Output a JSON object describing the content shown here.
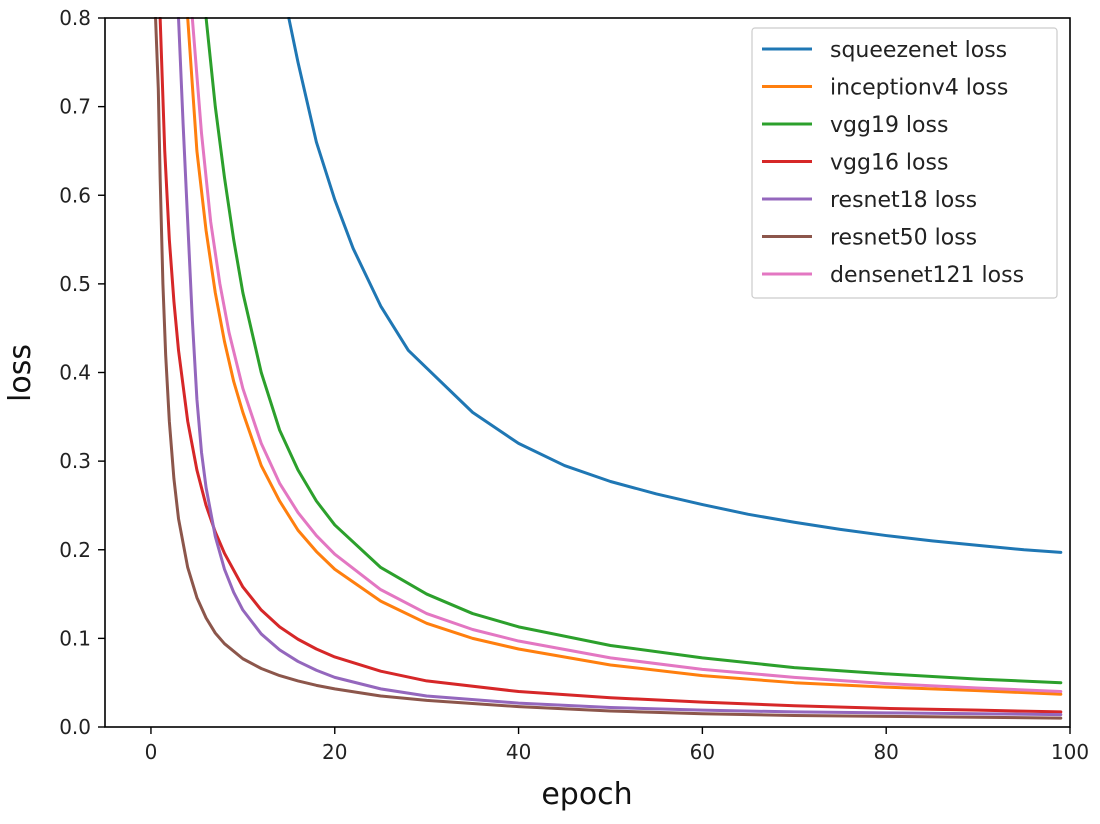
{
  "chart_data": {
    "type": "line",
    "title": "",
    "xlabel": "epoch",
    "ylabel": "loss",
    "xlim": [
      -5,
      100
    ],
    "ylim": [
      0.0,
      0.8
    ],
    "xticks": [
      0,
      20,
      40,
      60,
      80,
      100
    ],
    "xtick_labels": [
      "0",
      "20",
      "40",
      "60",
      "80",
      "100"
    ],
    "yticks": [
      0.0,
      0.1,
      0.2,
      0.3,
      0.4,
      0.5,
      0.6,
      0.7,
      0.8
    ],
    "ytick_labels": [
      "0.0",
      "0.1",
      "0.2",
      "0.3",
      "0.4",
      "0.5",
      "0.6",
      "0.7",
      "0.8"
    ],
    "grid": false,
    "legend_position": "top-right",
    "series": [
      {
        "name": "squeezenet loss",
        "color": "#1f77b4",
        "x": [
          15,
          16,
          18,
          20,
          22,
          25,
          28,
          30,
          35,
          40,
          45,
          50,
          55,
          60,
          65,
          70,
          75,
          80,
          85,
          90,
          95,
          99
        ],
        "y": [
          0.8,
          0.75,
          0.66,
          0.595,
          0.54,
          0.475,
          0.425,
          0.405,
          0.355,
          0.32,
          0.295,
          0.277,
          0.263,
          0.251,
          0.24,
          0.231,
          0.223,
          0.216,
          0.21,
          0.205,
          0.2,
          0.197
        ]
      },
      {
        "name": "inceptionv4 loss",
        "color": "#ff7f0e",
        "x": [
          4,
          5,
          6,
          7,
          8,
          9,
          10,
          12,
          14,
          16,
          18,
          20,
          25,
          30,
          35,
          40,
          50,
          60,
          70,
          80,
          90,
          99
        ],
        "y": [
          0.8,
          0.65,
          0.56,
          0.49,
          0.435,
          0.39,
          0.355,
          0.295,
          0.255,
          0.222,
          0.198,
          0.178,
          0.142,
          0.117,
          0.1,
          0.088,
          0.07,
          0.058,
          0.05,
          0.045,
          0.041,
          0.037
        ]
      },
      {
        "name": "vgg19 loss",
        "color": "#2ca02c",
        "x": [
          6,
          7,
          8,
          9,
          10,
          12,
          14,
          16,
          18,
          20,
          25,
          30,
          35,
          40,
          50,
          60,
          70,
          80,
          90,
          99
        ],
        "y": [
          0.8,
          0.7,
          0.62,
          0.55,
          0.49,
          0.4,
          0.335,
          0.29,
          0.255,
          0.228,
          0.18,
          0.15,
          0.128,
          0.113,
          0.092,
          0.078,
          0.067,
          0.06,
          0.054,
          0.05
        ]
      },
      {
        "name": "vgg16 loss",
        "color": "#d62728",
        "x": [
          1,
          1.5,
          2,
          2.5,
          3,
          4,
          5,
          6,
          7,
          8,
          10,
          12,
          14,
          16,
          18,
          20,
          25,
          30,
          40,
          50,
          60,
          70,
          80,
          90,
          99
        ],
        "y": [
          0.8,
          0.65,
          0.55,
          0.48,
          0.425,
          0.345,
          0.29,
          0.25,
          0.22,
          0.196,
          0.158,
          0.132,
          0.113,
          0.099,
          0.088,
          0.079,
          0.063,
          0.052,
          0.04,
          0.033,
          0.028,
          0.024,
          0.021,
          0.019,
          0.017
        ]
      },
      {
        "name": "resnet18 loss",
        "color": "#9467bd",
        "x": [
          3,
          3.5,
          4,
          4.5,
          5,
          5.5,
          6,
          7,
          8,
          9,
          10,
          12,
          14,
          16,
          18,
          20,
          25,
          30,
          40,
          50,
          60,
          70,
          80,
          90,
          99
        ],
        "y": [
          0.8,
          0.68,
          0.57,
          0.46,
          0.37,
          0.31,
          0.27,
          0.215,
          0.178,
          0.152,
          0.132,
          0.105,
          0.087,
          0.074,
          0.064,
          0.056,
          0.043,
          0.035,
          0.027,
          0.022,
          0.019,
          0.017,
          0.016,
          0.015,
          0.014
        ]
      },
      {
        "name": "resnet50 loss",
        "color": "#8c564b",
        "x": [
          0.5,
          0.8,
          1,
          1.3,
          1.6,
          2,
          2.5,
          3,
          4,
          5,
          6,
          7,
          8,
          10,
          12,
          14,
          16,
          18,
          20,
          25,
          30,
          40,
          50,
          60,
          70,
          80,
          90,
          99
        ],
        "y": [
          0.8,
          0.72,
          0.62,
          0.5,
          0.42,
          0.345,
          0.28,
          0.235,
          0.18,
          0.146,
          0.123,
          0.106,
          0.094,
          0.077,
          0.066,
          0.058,
          0.052,
          0.047,
          0.043,
          0.035,
          0.03,
          0.023,
          0.018,
          0.015,
          0.013,
          0.012,
          0.011,
          0.01
        ]
      },
      {
        "name": "densenet121 loss",
        "color": "#e377c2",
        "x": [
          4.5,
          5.5,
          6.5,
          7.5,
          8.5,
          10,
          12,
          14,
          16,
          18,
          20,
          25,
          30,
          35,
          40,
          50,
          60,
          70,
          80,
          90,
          99
        ],
        "y": [
          0.8,
          0.67,
          0.57,
          0.5,
          0.445,
          0.382,
          0.32,
          0.275,
          0.242,
          0.216,
          0.195,
          0.155,
          0.128,
          0.11,
          0.097,
          0.078,
          0.065,
          0.056,
          0.049,
          0.044,
          0.04
        ]
      }
    ]
  }
}
